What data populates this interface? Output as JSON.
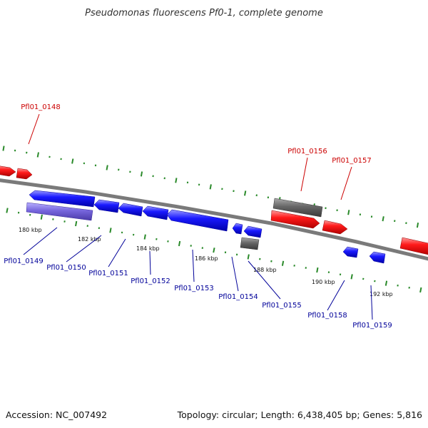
{
  "header": {
    "title": "Pseudomonas fluorescens Pf0-1, complete genome"
  },
  "footer": {
    "accession": "Accession: NC_007492",
    "summary": "Topology: circular; Length: 6,438,405 bp; Genes: 5,816"
  },
  "colors": {
    "forward_strand": "#ff1a1a",
    "reverse_strand": "#1a1aff",
    "selected_feature": "#7766dd",
    "non_coding": "#666666",
    "backbone": "#7a7a7a",
    "tick": "#2a8a2a",
    "forward_label": "#cc0000",
    "reverse_label": "#000099"
  },
  "scale_labels": [
    "180 kbp",
    "182 kbp",
    "184 kbp",
    "186 kbp",
    "188 kbp",
    "190 kbp",
    "192 kbp"
  ],
  "gene_labels_forward": [
    "Pfl01_0148",
    "Pfl01_0156",
    "Pfl01_0157"
  ],
  "gene_labels_reverse": [
    "Pfl01_0149",
    "Pfl01_0150",
    "Pfl01_0151",
    "Pfl01_0152",
    "Pfl01_0153",
    "Pfl01_0154",
    "Pfl01_0155",
    "Pfl01_0158",
    "Pfl01_0159"
  ]
}
